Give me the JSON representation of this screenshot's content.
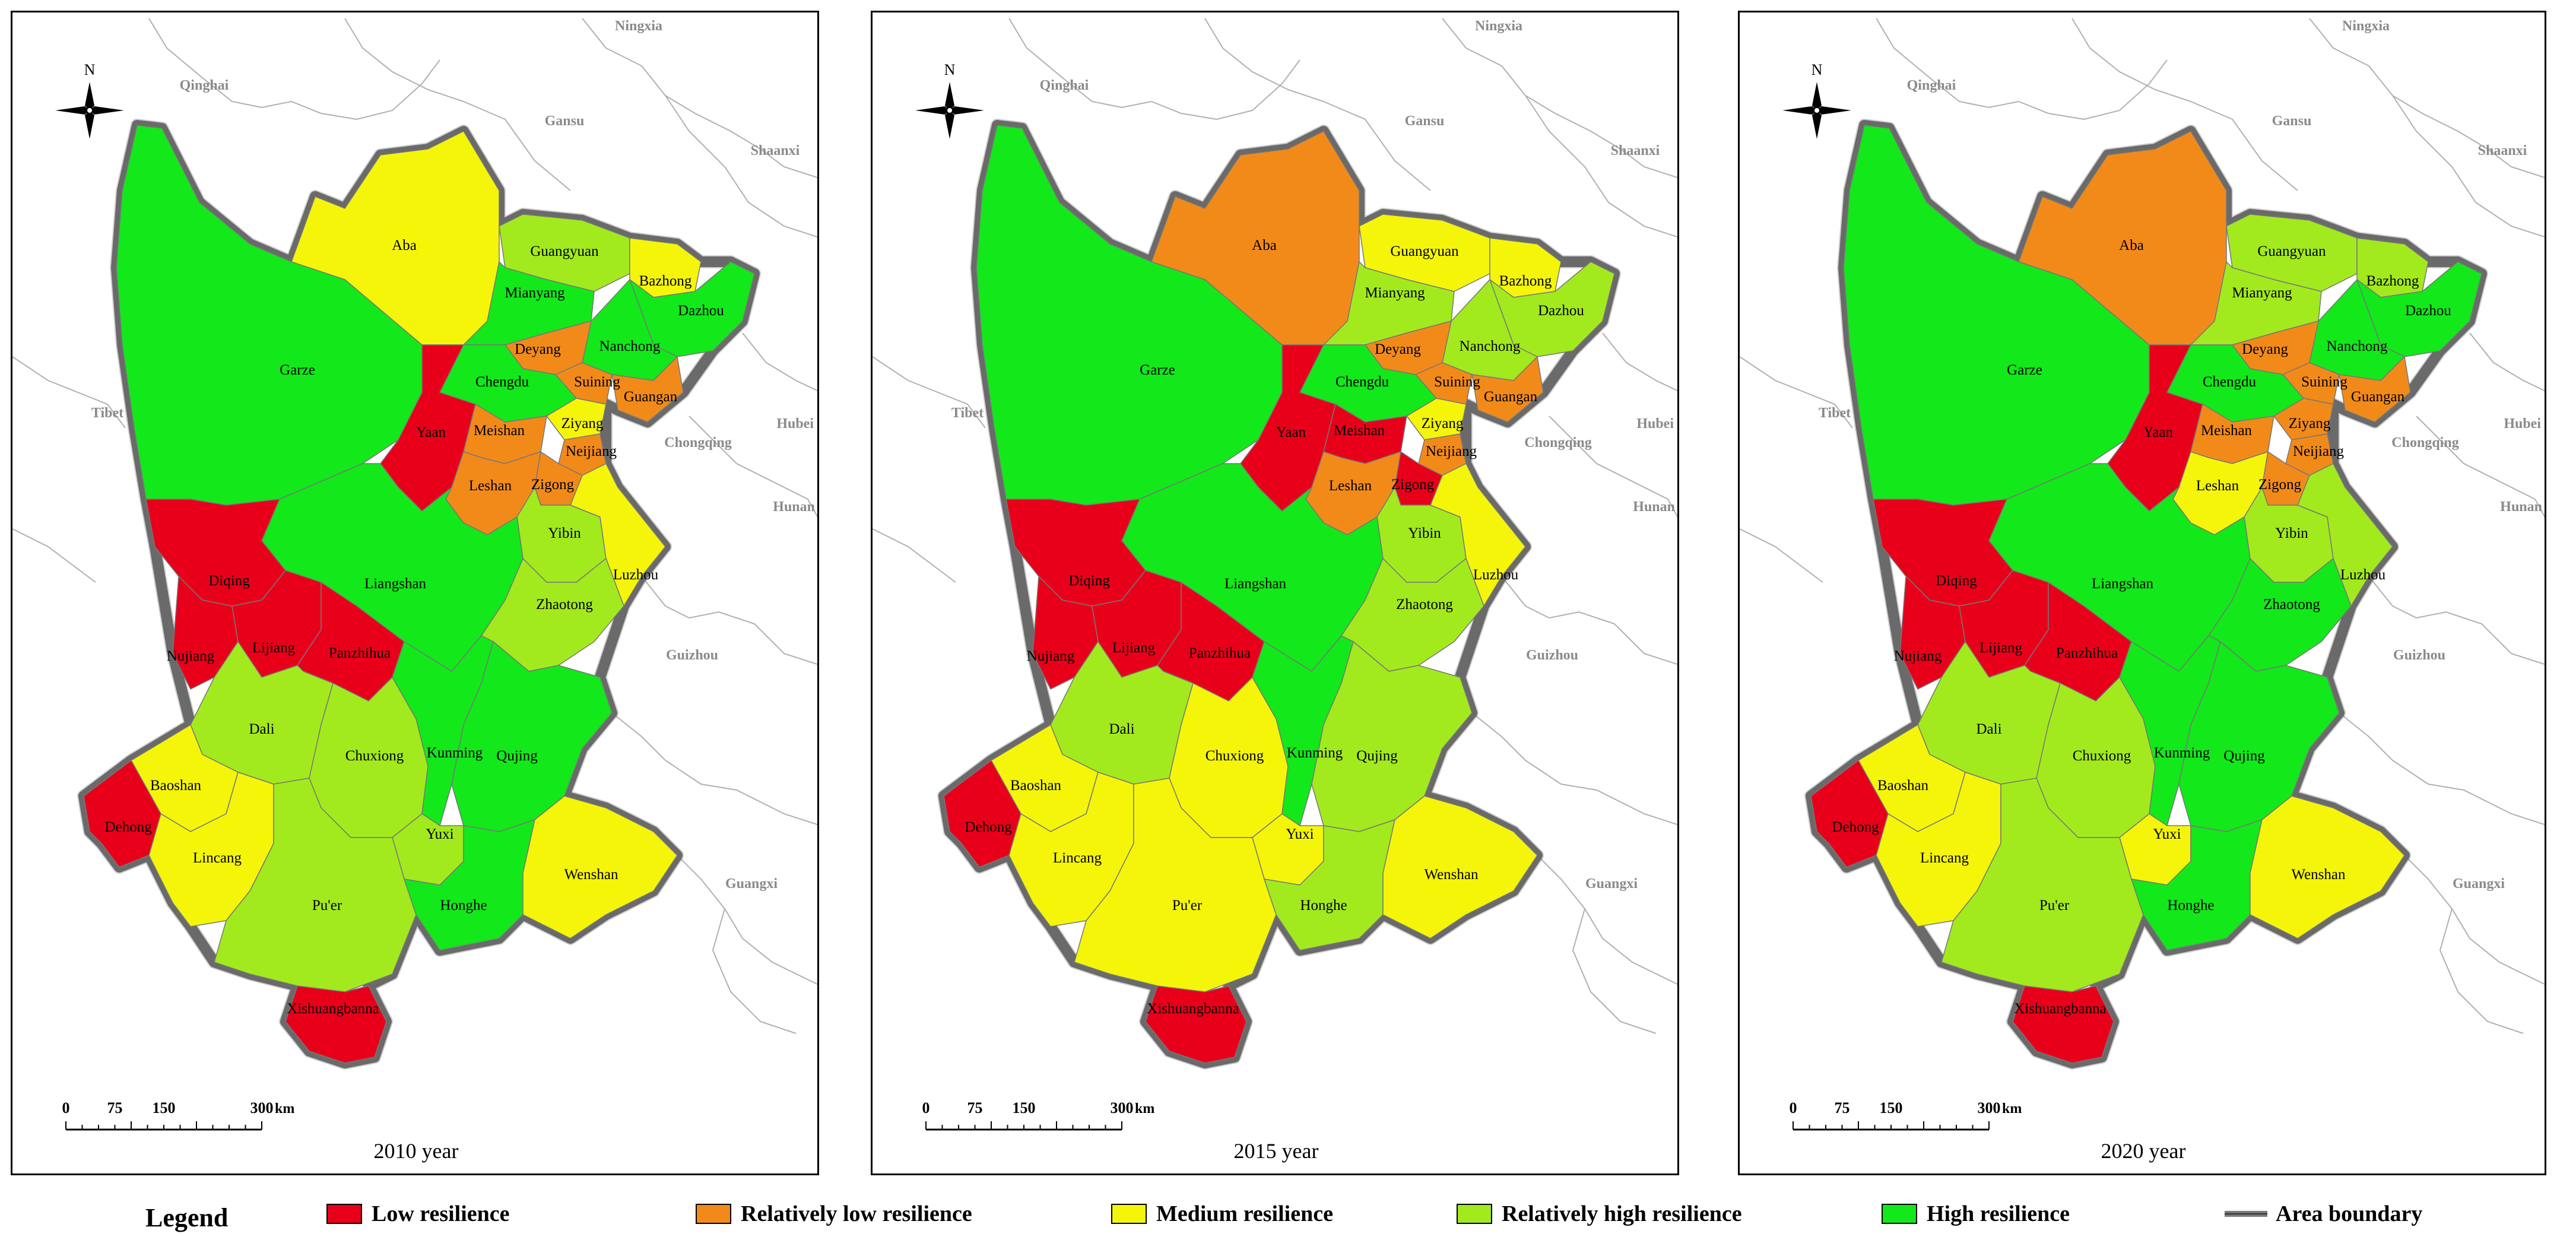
{
  "colors": {
    "low": "#e8001a",
    "relatively_low": "#f28a1a",
    "medium": "#f5f50a",
    "relatively_high": "#a2ea1e",
    "high": "#12e81a",
    "boundary": "#7a7a7a"
  },
  "compass_label": "N",
  "scale": {
    "ticks": [
      "0",
      "75",
      "150",
      "300"
    ],
    "unit": "km"
  },
  "neighbors": [
    "Ningxia",
    "Qinghai",
    "Gansu",
    "Shaanxi",
    "Tibet",
    "Hubei",
    "Chongqing",
    "Hunan",
    "Guizhou",
    "Guangxi"
  ],
  "panels": [
    {
      "year_label": "2010 year",
      "levels": {
        "Aba": "medium",
        "Garze": "high",
        "Guangyuan": "relatively_high",
        "Bazhong": "medium",
        "Mianyang": "high",
        "Dazhou": "high",
        "Nanchong": "high",
        "Deyang": "relatively_low",
        "Suining": "relatively_low",
        "Guangan": "relatively_low",
        "Chengdu": "high",
        "Yaan": "low",
        "Meishan": "relatively_low",
        "Ziyang": "medium",
        "Neijiang": "relatively_low",
        "Leshan": "relatively_low",
        "Zigong": "relatively_low",
        "Yibin": "relatively_high",
        "Luzhou": "medium",
        "Liangshan": "high",
        "Zhaotong": "relatively_high",
        "Diqing": "low",
        "Nujiang": "low",
        "Lijiang": "low",
        "Panzhihua": "low",
        "Dali": "relatively_high",
        "Chuxiong": "relatively_high",
        "Kunming": "high",
        "Qujing": "high",
        "Baoshan": "medium",
        "Dehong": "low",
        "Lincang": "medium",
        "Yuxi": "relatively_high",
        "Wenshan": "medium",
        "Puer": "relatively_high",
        "Honghe": "high",
        "Xishuangbanna": "low"
      }
    },
    {
      "year_label": "2015 year",
      "levels": {
        "Aba": "relatively_low",
        "Garze": "high",
        "Guangyuan": "medium",
        "Bazhong": "medium",
        "Mianyang": "relatively_high",
        "Dazhou": "relatively_high",
        "Nanchong": "relatively_high",
        "Deyang": "relatively_low",
        "Suining": "relatively_low",
        "Guangan": "relatively_low",
        "Chengdu": "high",
        "Yaan": "low",
        "Meishan": "low",
        "Ziyang": "medium",
        "Neijiang": "relatively_low",
        "Leshan": "relatively_low",
        "Zigong": "low",
        "Yibin": "relatively_high",
        "Luzhou": "medium",
        "Liangshan": "high",
        "Zhaotong": "relatively_high",
        "Diqing": "low",
        "Nujiang": "low",
        "Lijiang": "low",
        "Panzhihua": "low",
        "Dali": "relatively_high",
        "Chuxiong": "medium",
        "Kunming": "high",
        "Qujing": "relatively_high",
        "Baoshan": "medium",
        "Dehong": "low",
        "Lincang": "medium",
        "Yuxi": "medium",
        "Wenshan": "medium",
        "Puer": "medium",
        "Honghe": "relatively_high",
        "Xishuangbanna": "low"
      }
    },
    {
      "year_label": "2020 year",
      "levels": {
        "Aba": "relatively_low",
        "Garze": "high",
        "Guangyuan": "relatively_high",
        "Bazhong": "relatively_high",
        "Mianyang": "relatively_high",
        "Dazhou": "high",
        "Nanchong": "high",
        "Deyang": "relatively_low",
        "Suining": "relatively_low",
        "Guangan": "relatively_low",
        "Chengdu": "high",
        "Yaan": "low",
        "Meishan": "relatively_low",
        "Ziyang": "relatively_low",
        "Neijiang": "relatively_low",
        "Leshan": "medium",
        "Zigong": "relatively_low",
        "Yibin": "relatively_high",
        "Luzhou": "relatively_high",
        "Liangshan": "high",
        "Zhaotong": "high",
        "Diqing": "low",
        "Nujiang": "low",
        "Lijiang": "low",
        "Panzhihua": "low",
        "Dali": "relatively_high",
        "Chuxiong": "relatively_high",
        "Kunming": "high",
        "Qujing": "high",
        "Baoshan": "medium",
        "Dehong": "low",
        "Lincang": "medium",
        "Yuxi": "medium",
        "Wenshan": "medium",
        "Puer": "relatively_high",
        "Honghe": "high",
        "Xishuangbanna": "low"
      }
    }
  ],
  "region_labels": {
    "Aba": "Aba",
    "Garze": "Garze",
    "Guangyuan": "Guangyuan",
    "Bazhong": "Bazhong",
    "Mianyang": "Mianyang",
    "Dazhou": "Dazhou",
    "Nanchong": "Nanchong",
    "Deyang": "Deyang",
    "Suining": "Suining",
    "Guangan": "Guangan",
    "Chengdu": "Chengdu",
    "Yaan": "Yaan",
    "Meishan": "Meishan",
    "Ziyang": "Ziyang",
    "Neijiang": "Neijiang",
    "Leshan": "Leshan",
    "Zigong": "Zigong",
    "Yibin": "Yibin",
    "Luzhou": "Luzhou",
    "Liangshan": "Liangshan",
    "Zhaotong": "Zhaotong",
    "Diqing": "Diqing",
    "Nujiang": "Nujiang",
    "Lijiang": "Lijiang",
    "Panzhihua": "Panzhihua",
    "Dali": "Dali",
    "Chuxiong": "Chuxiong",
    "Kunming": "Kunming",
    "Qujing": "Qujing",
    "Baoshan": "Baoshan",
    "Dehong": "Dehong",
    "Lincang": "Lincang",
    "Yuxi": "Yuxi",
    "Wenshan": "Wenshan",
    "Puer": "Pu'er",
    "Honghe": "Honghe",
    "Xishuangbanna": "Xishuangbanna"
  },
  "legend": {
    "title": "Legend",
    "items": [
      {
        "key": "low",
        "label": "Low resilience"
      },
      {
        "key": "relatively_low",
        "label": "Relatively low resilience"
      },
      {
        "key": "medium",
        "label": "Medium resilience"
      },
      {
        "key": "relatively_high",
        "label": "Relatively high resilience"
      },
      {
        "key": "high",
        "label": "High resilience"
      },
      {
        "key": "boundary",
        "label": "Area boundary"
      }
    ]
  }
}
